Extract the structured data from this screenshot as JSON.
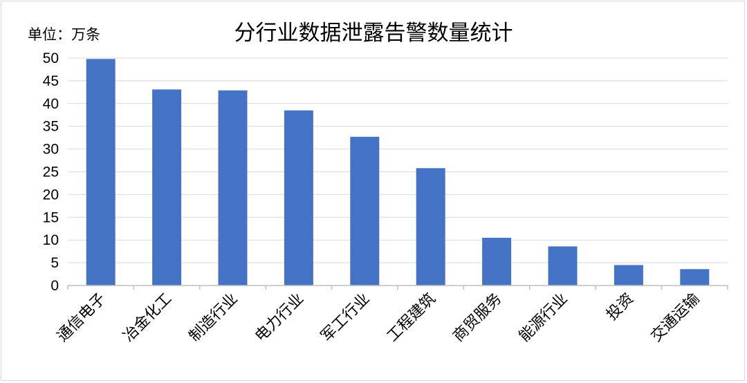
{
  "chart_data": {
    "type": "bar",
    "title": "分行业数据泄露告警数量统计",
    "unit_label": "单位：万条",
    "xlabel": "",
    "ylabel": "",
    "categories": [
      "通信电子",
      "冶金化工",
      "制造行业",
      "电力行业",
      "军工行业",
      "工程建筑",
      "商贸服务",
      "能源行业",
      "投资",
      "交通运输"
    ],
    "values": [
      49.8,
      43.1,
      42.9,
      38.5,
      32.7,
      25.8,
      10.5,
      8.6,
      4.5,
      3.6
    ],
    "ylim": [
      0,
      50
    ],
    "yticks": [
      0,
      5,
      10,
      15,
      20,
      25,
      30,
      35,
      40,
      45,
      50
    ],
    "grid": true,
    "legend": "none",
    "bar_color": "#4472C4",
    "grid_color": "#d9d9d9",
    "axis_color": "#bfbfbf"
  }
}
